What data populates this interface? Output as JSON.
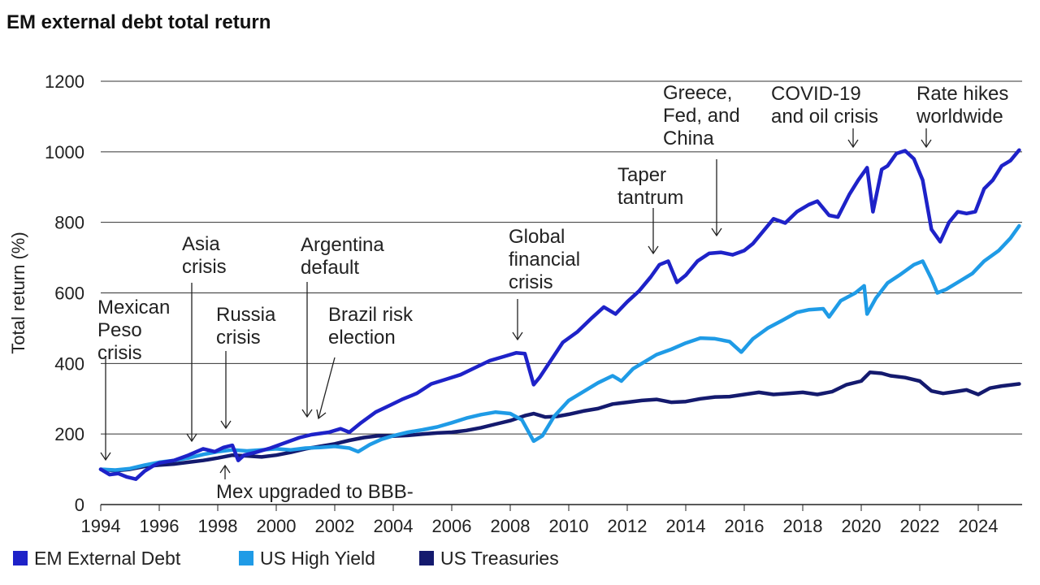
{
  "chart_data": {
    "type": "line",
    "title": "EM external debt total return",
    "ylabel": "Total return (%)",
    "xlabel": "",
    "xlim": [
      1994,
      2025.5
    ],
    "ylim": [
      0,
      1200
    ],
    "yticks": [
      0,
      200,
      400,
      600,
      800,
      1000,
      1200
    ],
    "xticks": [
      1994,
      1996,
      1998,
      2000,
      2002,
      2004,
      2006,
      2008,
      2010,
      2012,
      2014,
      2016,
      2018,
      2020,
      2022,
      2024
    ],
    "grid": "horizontal",
    "legend": "bottom",
    "series": [
      {
        "name": "EM External Debt",
        "color": "#1e22c8",
        "points": [
          [
            1994,
            100
          ],
          [
            1994.3,
            85
          ],
          [
            1994.6,
            88
          ],
          [
            1994.9,
            78
          ],
          [
            1995.2,
            72
          ],
          [
            1995.5,
            95
          ],
          [
            1995.8,
            110
          ],
          [
            1996.0,
            118
          ],
          [
            1996.5,
            125
          ],
          [
            1997.0,
            140
          ],
          [
            1997.5,
            158
          ],
          [
            1997.9,
            150
          ],
          [
            1998.2,
            162
          ],
          [
            1998.5,
            168
          ],
          [
            1998.7,
            125
          ],
          [
            1998.9,
            140
          ],
          [
            1999.3,
            148
          ],
          [
            1999.8,
            160
          ],
          [
            2000.3,
            175
          ],
          [
            2000.8,
            190
          ],
          [
            2001.2,
            198
          ],
          [
            2001.8,
            205
          ],
          [
            2002.2,
            215
          ],
          [
            2002.5,
            205
          ],
          [
            2002.9,
            232
          ],
          [
            2003.4,
            262
          ],
          [
            2003.9,
            282
          ],
          [
            2004.3,
            298
          ],
          [
            2004.8,
            315
          ],
          [
            2005.3,
            342
          ],
          [
            2005.8,
            355
          ],
          [
            2006.3,
            368
          ],
          [
            2006.8,
            388
          ],
          [
            2007.3,
            408
          ],
          [
            2007.8,
            420
          ],
          [
            2008.2,
            430
          ],
          [
            2008.5,
            428
          ],
          [
            2008.8,
            340
          ],
          [
            2009.0,
            360
          ],
          [
            2009.4,
            410
          ],
          [
            2009.8,
            460
          ],
          [
            2010.3,
            490
          ],
          [
            2010.8,
            530
          ],
          [
            2011.2,
            560
          ],
          [
            2011.6,
            540
          ],
          [
            2012.0,
            575
          ],
          [
            2012.4,
            605
          ],
          [
            2012.8,
            645
          ],
          [
            2013.1,
            680
          ],
          [
            2013.4,
            690
          ],
          [
            2013.7,
            630
          ],
          [
            2014.0,
            650
          ],
          [
            2014.4,
            690
          ],
          [
            2014.8,
            712
          ],
          [
            2015.2,
            715
          ],
          [
            2015.6,
            708
          ],
          [
            2016.0,
            720
          ],
          [
            2016.3,
            740
          ],
          [
            2016.7,
            780
          ],
          [
            2017.0,
            810
          ],
          [
            2017.4,
            798
          ],
          [
            2017.8,
            830
          ],
          [
            2018.2,
            850
          ],
          [
            2018.5,
            860
          ],
          [
            2018.9,
            820
          ],
          [
            2019.2,
            815
          ],
          [
            2019.6,
            880
          ],
          [
            2019.9,
            920
          ],
          [
            2020.2,
            955
          ],
          [
            2020.4,
            830
          ],
          [
            2020.7,
            950
          ],
          [
            2020.9,
            960
          ],
          [
            2021.2,
            995
          ],
          [
            2021.5,
            1003
          ],
          [
            2021.8,
            980
          ],
          [
            2022.1,
            920
          ],
          [
            2022.4,
            780
          ],
          [
            2022.7,
            745
          ],
          [
            2023.0,
            800
          ],
          [
            2023.3,
            830
          ],
          [
            2023.6,
            825
          ],
          [
            2023.9,
            830
          ],
          [
            2024.2,
            895
          ],
          [
            2024.5,
            920
          ],
          [
            2024.8,
            960
          ],
          [
            2025.1,
            975
          ],
          [
            2025.4,
            1005
          ]
        ]
      },
      {
        "name": "US High Yield",
        "color": "#1f9be6",
        "points": [
          [
            1994,
            100
          ],
          [
            1994.5,
            98
          ],
          [
            1995.0,
            102
          ],
          [
            1995.5,
            112
          ],
          [
            1996.0,
            120
          ],
          [
            1996.5,
            125
          ],
          [
            1997.0,
            132
          ],
          [
            1997.5,
            142
          ],
          [
            1998.0,
            150
          ],
          [
            1998.5,
            155
          ],
          [
            1999.0,
            152
          ],
          [
            1999.5,
            155
          ],
          [
            2000.0,
            158
          ],
          [
            2000.5,
            155
          ],
          [
            2001.0,
            160
          ],
          [
            2001.5,
            162
          ],
          [
            2002.0,
            165
          ],
          [
            2002.5,
            160
          ],
          [
            2002.8,
            150
          ],
          [
            2003.2,
            170
          ],
          [
            2003.6,
            185
          ],
          [
            2004.0,
            195
          ],
          [
            2004.5,
            205
          ],
          [
            2005.0,
            212
          ],
          [
            2005.5,
            220
          ],
          [
            2006.0,
            232
          ],
          [
            2006.5,
            245
          ],
          [
            2007.0,
            255
          ],
          [
            2007.5,
            262
          ],
          [
            2008.0,
            258
          ],
          [
            2008.4,
            240
          ],
          [
            2008.8,
            180
          ],
          [
            2009.1,
            195
          ],
          [
            2009.5,
            250
          ],
          [
            2010.0,
            295
          ],
          [
            2010.5,
            320
          ],
          [
            2011.0,
            345
          ],
          [
            2011.5,
            365
          ],
          [
            2011.8,
            350
          ],
          [
            2012.2,
            385
          ],
          [
            2012.6,
            405
          ],
          [
            2013.0,
            425
          ],
          [
            2013.5,
            440
          ],
          [
            2014.0,
            458
          ],
          [
            2014.5,
            472
          ],
          [
            2015.0,
            470
          ],
          [
            2015.5,
            462
          ],
          [
            2015.9,
            432
          ],
          [
            2016.3,
            470
          ],
          [
            2016.8,
            500
          ],
          [
            2017.3,
            522
          ],
          [
            2017.8,
            545
          ],
          [
            2018.2,
            552
          ],
          [
            2018.7,
            555
          ],
          [
            2018.9,
            532
          ],
          [
            2019.3,
            578
          ],
          [
            2019.8,
            600
          ],
          [
            2020.1,
            620
          ],
          [
            2020.2,
            540
          ],
          [
            2020.5,
            585
          ],
          [
            2020.9,
            628
          ],
          [
            2021.3,
            650
          ],
          [
            2021.8,
            680
          ],
          [
            2022.1,
            690
          ],
          [
            2022.4,
            640
          ],
          [
            2022.6,
            600
          ],
          [
            2022.9,
            610
          ],
          [
            2023.3,
            630
          ],
          [
            2023.8,
            655
          ],
          [
            2024.2,
            690
          ],
          [
            2024.7,
            720
          ],
          [
            2025.1,
            755
          ],
          [
            2025.4,
            790
          ]
        ]
      },
      {
        "name": "US Treasuries",
        "color": "#141a6e",
        "points": [
          [
            1994,
            100
          ],
          [
            1994.5,
            96
          ],
          [
            1995.0,
            100
          ],
          [
            1995.5,
            108
          ],
          [
            1996.0,
            112
          ],
          [
            1996.5,
            115
          ],
          [
            1997.0,
            120
          ],
          [
            1997.5,
            125
          ],
          [
            1998.0,
            132
          ],
          [
            1998.5,
            140
          ],
          [
            1999.0,
            138
          ],
          [
            1999.5,
            135
          ],
          [
            2000.0,
            140
          ],
          [
            2000.5,
            148
          ],
          [
            2001.0,
            158
          ],
          [
            2001.5,
            165
          ],
          [
            2002.0,
            172
          ],
          [
            2002.5,
            182
          ],
          [
            2003.0,
            190
          ],
          [
            2003.5,
            195
          ],
          [
            2004.0,
            194
          ],
          [
            2004.5,
            196
          ],
          [
            2005.0,
            200
          ],
          [
            2005.5,
            203
          ],
          [
            2006.0,
            205
          ],
          [
            2006.5,
            210
          ],
          [
            2007.0,
            218
          ],
          [
            2007.5,
            228
          ],
          [
            2008.0,
            238
          ],
          [
            2008.5,
            252
          ],
          [
            2008.8,
            258
          ],
          [
            2009.2,
            248
          ],
          [
            2009.6,
            250
          ],
          [
            2010.0,
            256
          ],
          [
            2010.5,
            265
          ],
          [
            2011.0,
            272
          ],
          [
            2011.5,
            285
          ],
          [
            2012.0,
            290
          ],
          [
            2012.5,
            295
          ],
          [
            2013.0,
            298
          ],
          [
            2013.5,
            290
          ],
          [
            2014.0,
            292
          ],
          [
            2014.5,
            300
          ],
          [
            2015.0,
            305
          ],
          [
            2015.5,
            306
          ],
          [
            2016.0,
            312
          ],
          [
            2016.5,
            318
          ],
          [
            2017.0,
            312
          ],
          [
            2017.5,
            315
          ],
          [
            2018.0,
            318
          ],
          [
            2018.5,
            312
          ],
          [
            2019.0,
            320
          ],
          [
            2019.5,
            340
          ],
          [
            2020.0,
            350
          ],
          [
            2020.3,
            375
          ],
          [
            2020.7,
            372
          ],
          [
            2021.0,
            365
          ],
          [
            2021.5,
            360
          ],
          [
            2022.0,
            350
          ],
          [
            2022.4,
            322
          ],
          [
            2022.8,
            315
          ],
          [
            2023.2,
            320
          ],
          [
            2023.6,
            325
          ],
          [
            2024.0,
            312
          ],
          [
            2024.4,
            330
          ],
          [
            2024.8,
            336
          ],
          [
            2025.2,
            340
          ],
          [
            2025.4,
            342
          ]
        ]
      }
    ],
    "annotations": [
      {
        "lines": [
          "Mexican",
          "Peso",
          "crisis"
        ],
        "x": 1994.2,
        "y": 100
      },
      {
        "lines": [
          "Asia",
          "crisis"
        ],
        "x": 1997.0,
        "y": 135
      },
      {
        "lines": [
          "Russia",
          "crisis"
        ],
        "x": 1998.4,
        "y": 165
      },
      {
        "lines": [
          "Argentina",
          "default"
        ],
        "x": 2001.0,
        "y": 200
      },
      {
        "lines": [
          "Brazil risk",
          "election"
        ],
        "x": 2001.5,
        "y": 205
      },
      {
        "lines": [
          "Global",
          "financial",
          "crisis"
        ],
        "x": 2008.2,
        "y": 430
      },
      {
        "lines": [
          "Taper",
          "tantrum"
        ],
        "x": 2012.9,
        "y": 690
      },
      {
        "lines": [
          "Greece,",
          "Fed, and",
          "China"
        ],
        "x": 2015.0,
        "y": 712
      },
      {
        "lines": [
          "COVID-19",
          "and oil crisis"
        ],
        "x": 2019.8,
        "y": 1000
      },
      {
        "lines": [
          "Rate hikes",
          "worldwide"
        ],
        "x": 2022.0,
        "y": 1000
      },
      {
        "lines": [
          "Mex upgraded to BBB-"
        ],
        "x": 1998.5,
        "y": 95
      }
    ]
  }
}
